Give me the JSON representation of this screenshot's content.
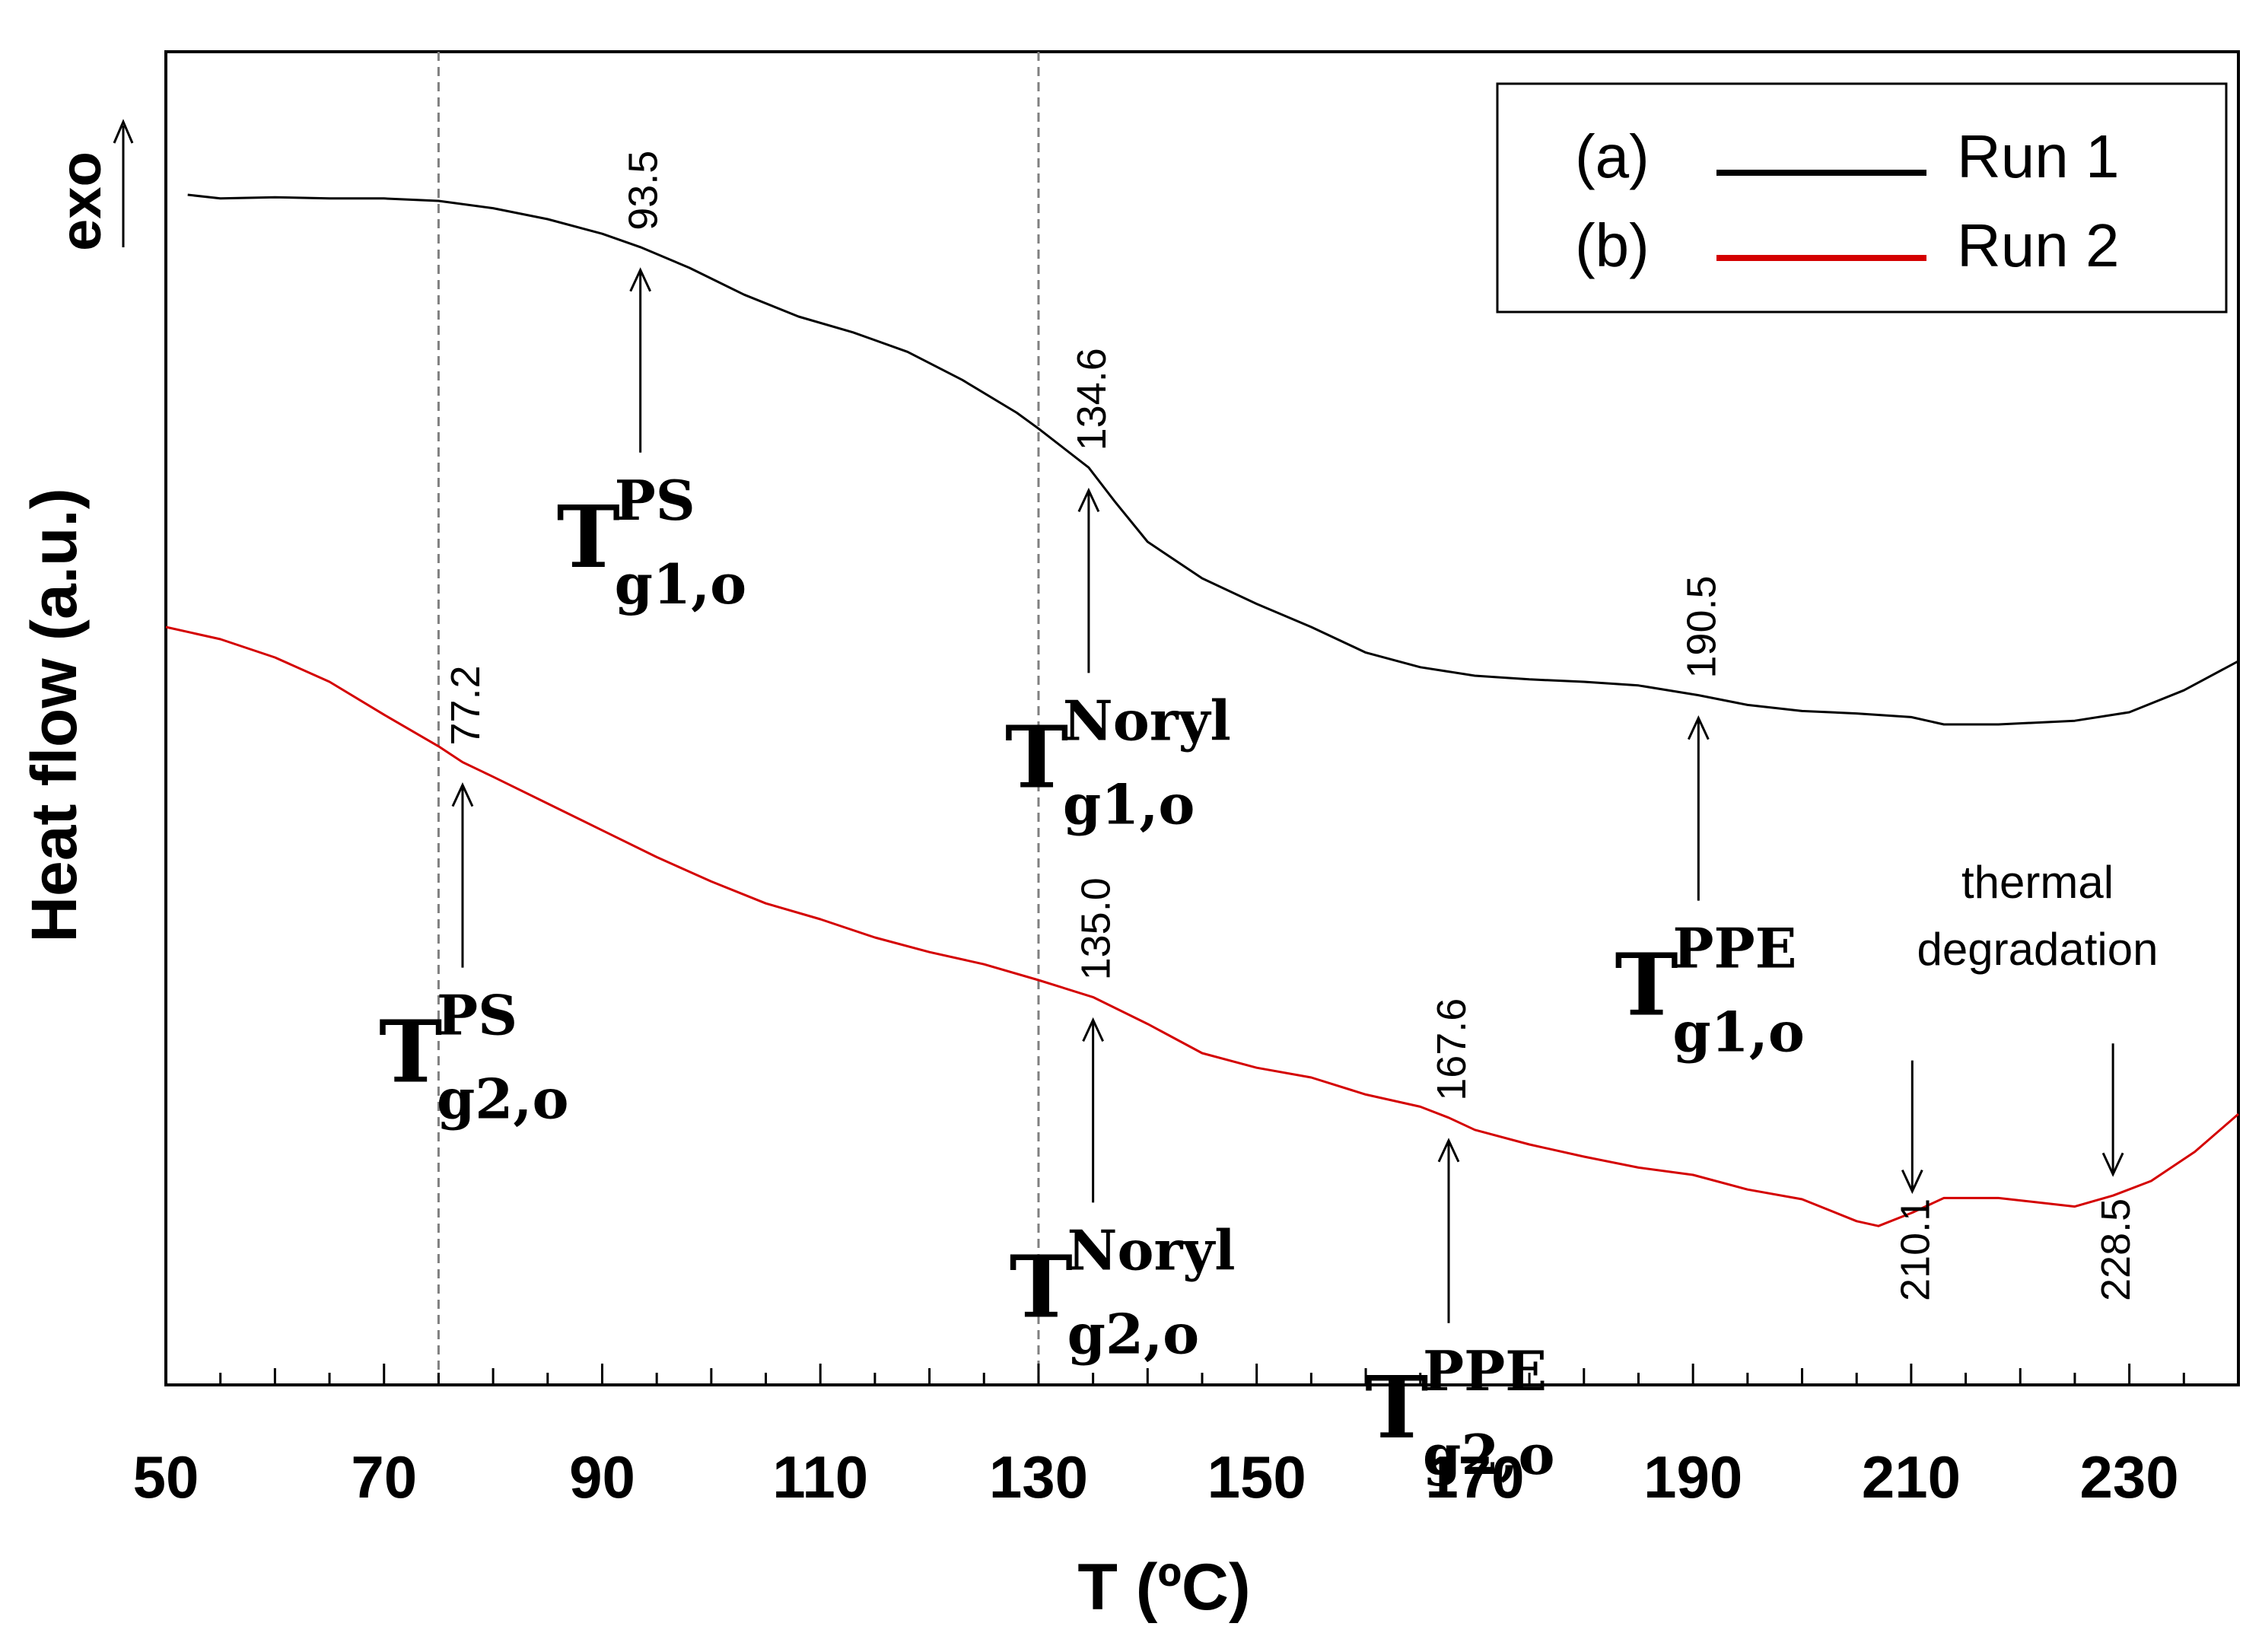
{
  "chart_data": {
    "type": "line",
    "title": "",
    "xlabel": "T (ºC)",
    "ylabel": "Heat flow (a.u.)",
    "exo_label": "exo",
    "xlim": [
      50,
      240
    ],
    "ylim": [
      0,
      1
    ],
    "xticks": [
      50,
      70,
      90,
      110,
      130,
      150,
      170,
      190,
      210,
      230
    ],
    "xtick_labels": [
      "50",
      "70",
      "90",
      "110",
      "130",
      "150",
      "170",
      "190",
      "210",
      "230"
    ],
    "yaxis_ticks": "none",
    "grid": false,
    "legend": {
      "position": "top-right",
      "entries": [
        {
          "tag": "(a)",
          "label": "Run 1",
          "color": "#000000"
        },
        {
          "tag": "(b)",
          "label": "Run 2",
          "color": "#d40000"
        }
      ]
    },
    "reference_lines": [
      {
        "x": 75,
        "style": "dashed",
        "color": "#808080"
      },
      {
        "x": 130,
        "style": "dashed",
        "color": "#808080"
      }
    ],
    "series": [
      {
        "name": "Run 1",
        "color": "#000000",
        "x": [
          52,
          55,
          60,
          65,
          70,
          75,
          80,
          85,
          90,
          93.5,
          98,
          103,
          108,
          113,
          118,
          123,
          128,
          130,
          134.6,
          137,
          140,
          145,
          150,
          155,
          160,
          165,
          170,
          175,
          180,
          185,
          190.5,
          195,
          200,
          205,
          210,
          213,
          218,
          225,
          230,
          235,
          240
        ],
        "values": [
          0.915,
          0.912,
          0.913,
          0.912,
          0.912,
          0.91,
          0.904,
          0.895,
          0.883,
          0.872,
          0.855,
          0.833,
          0.815,
          0.802,
          0.786,
          0.763,
          0.736,
          0.723,
          0.691,
          0.663,
          0.63,
          0.6,
          0.579,
          0.56,
          0.539,
          0.527,
          0.52,
          0.517,
          0.515,
          0.512,
          0.504,
          0.496,
          0.491,
          0.489,
          0.486,
          0.48,
          0.48,
          0.483,
          0.49,
          0.508,
          0.532
        ]
      },
      {
        "name": "Run 2",
        "color": "#d40000",
        "x": [
          50,
          55,
          60,
          65,
          70,
          75,
          77.2,
          80,
          85,
          90,
          95,
          100,
          105,
          110,
          115,
          120,
          125,
          130,
          135,
          140,
          145,
          150,
          155,
          160,
          165,
          167.6,
          170,
          175,
          180,
          185,
          190,
          195,
          200,
          205,
          207,
          210.1,
          213,
          218,
          225,
          228.5,
          232,
          236,
          240
        ],
        "values": [
          0.56,
          0.55,
          0.535,
          0.515,
          0.488,
          0.462,
          0.449,
          0.437,
          0.415,
          0.393,
          0.371,
          0.351,
          0.333,
          0.32,
          0.305,
          0.293,
          0.283,
          0.27,
          0.256,
          0.234,
          0.21,
          0.198,
          0.19,
          0.176,
          0.166,
          0.157,
          0.147,
          0.135,
          0.125,
          0.116,
          0.11,
          0.098,
          0.09,
          0.072,
          0.068,
          0.079,
          0.091,
          0.091,
          0.084,
          0.093,
          0.105,
          0.129,
          0.16
        ]
      }
    ],
    "annotations": [
      {
        "id": "tg1-ps",
        "series": "Run 1",
        "x": 93.5,
        "value_label": "93.5",
        "symbol": "T",
        "sub": "g1,o",
        "sup": "PS",
        "direction": "up"
      },
      {
        "id": "tg1-noryl",
        "series": "Run 1",
        "x": 134.6,
        "value_label": "134.6",
        "symbol": "T",
        "sub": "g1,o",
        "sup": "Noryl",
        "direction": "up"
      },
      {
        "id": "tg1-ppe",
        "series": "Run 1",
        "x": 190.5,
        "value_label": "190.5",
        "symbol": "T",
        "sub": "g1,o",
        "sup": "PPE",
        "direction": "up"
      },
      {
        "id": "tg2-ps",
        "series": "Run 2",
        "x": 77.2,
        "value_label": "77.2",
        "symbol": "T",
        "sub": "g2,o",
        "sup": "PS",
        "direction": "up"
      },
      {
        "id": "tg2-noryl",
        "series": "Run 2",
        "x": 135.0,
        "value_label": "135.0",
        "symbol": "T",
        "sub": "g2,o",
        "sup": "Noryl",
        "direction": "up"
      },
      {
        "id": "tg2-ppe",
        "series": "Run 2",
        "x": 167.6,
        "value_label": "167.6",
        "symbol": "T",
        "sub": "g2,o",
        "sup": "PPE",
        "direction": "up"
      },
      {
        "id": "deg-1",
        "series": "Run 2",
        "x": 210.1,
        "value_label": "210.1",
        "direction": "down"
      },
      {
        "id": "deg-2",
        "series": "Run 2",
        "x": 228.5,
        "value_label": "228.5",
        "direction": "down"
      }
    ],
    "degradation_label": [
      "thermal",
      "degradation"
    ]
  }
}
